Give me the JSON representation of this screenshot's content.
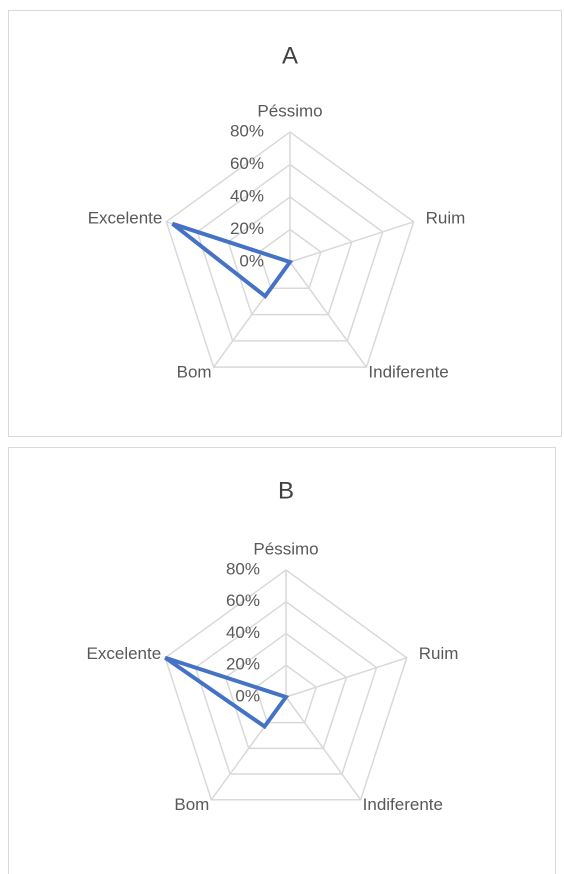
{
  "chart_data": [
    {
      "type": "radar",
      "title": "A",
      "categories": [
        "Péssimo",
        "Ruim",
        "Indiferente",
        "Bom",
        "Excelente"
      ],
      "series": [
        {
          "name": "A",
          "color": "#4472c4",
          "values": [
            0,
            0,
            0,
            26,
            76
          ]
        }
      ],
      "ylim": [
        0,
        80
      ],
      "yticks": [
        {
          "value": 0,
          "label": "0%"
        },
        {
          "value": 20,
          "label": "20%"
        },
        {
          "value": 40,
          "label": "40%"
        },
        {
          "value": 60,
          "label": "60%"
        },
        {
          "value": 80,
          "label": "80%"
        }
      ],
      "grid": true
    },
    {
      "type": "radar",
      "title": "B",
      "categories": [
        "Péssimo",
        "Ruim",
        "Indiferente",
        "Bom",
        "Excelente"
      ],
      "series": [
        {
          "name": "B",
          "color": "#4472c4",
          "values": [
            0,
            0,
            0,
            23,
            80
          ]
        }
      ],
      "ylim": [
        0,
        80
      ],
      "yticks": [
        {
          "value": 0,
          "label": "0%"
        },
        {
          "value": 20,
          "label": "20%"
        },
        {
          "value": 40,
          "label": "40%"
        },
        {
          "value": 60,
          "label": "60%"
        },
        {
          "value": 80,
          "label": "80%"
        }
      ],
      "grid": true
    }
  ]
}
